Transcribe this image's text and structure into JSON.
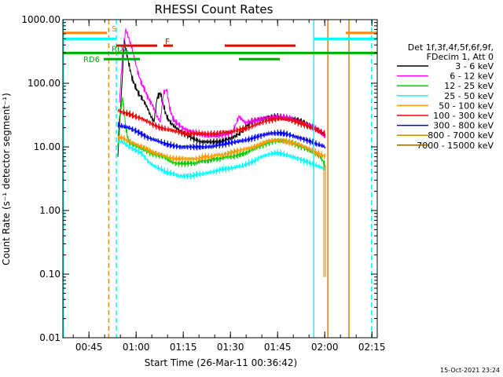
{
  "chart_data": {
    "type": "line",
    "title": "RHESSI Count Rates",
    "xlabel": "Start Time (26-Mar-11 00:36:42)",
    "ylabel": "Count Rate (s⁻¹ detector segment⁻¹)",
    "timestamp": "15-Oct-2021 23:24",
    "y_scale": "log",
    "ylim": [
      0.01,
      1000
    ],
    "xlim_minutes": [
      0,
      100
    ],
    "x_ticks": [
      {
        "minute": 8.3,
        "label": "00:45"
      },
      {
        "minute": 23.3,
        "label": "01:00"
      },
      {
        "minute": 38.3,
        "label": "01:15"
      },
      {
        "minute": 53.3,
        "label": "01:30"
      },
      {
        "minute": 68.3,
        "label": "01:45"
      },
      {
        "minute": 83.3,
        "label": "02:00"
      },
      {
        "minute": 98.3,
        "label": "02:15"
      }
    ],
    "y_ticks": [
      {
        "value": 1000,
        "label": "1000.00"
      },
      {
        "value": 100,
        "label": "100.00"
      },
      {
        "value": 10,
        "label": "10.00"
      },
      {
        "value": 1,
        "label": "1.00"
      },
      {
        "value": 0.1,
        "label": "0.10"
      },
      {
        "value": 0.01,
        "label": "0.01"
      }
    ],
    "legend_header": [
      "Det 1f,3f,4f,5f,6f,9f,",
      "FDecim 1, Att 0"
    ],
    "series": [
      {
        "name": "3 - 6 keV",
        "color": "#000000",
        "x": [
          17.5,
          18,
          19,
          19.5,
          20,
          21,
          22,
          23,
          23.5,
          24,
          25,
          26,
          27,
          28,
          29,
          30,
          31,
          32,
          33,
          34,
          35,
          36,
          37,
          38,
          39,
          40,
          41,
          42,
          44,
          46,
          48,
          50,
          52,
          54,
          56,
          58,
          60,
          62,
          64,
          66,
          68,
          70,
          72,
          74,
          76,
          78,
          80,
          82,
          83.5
        ],
        "y": [
          7,
          20,
          150,
          500,
          350,
          200,
          120,
          90,
          80,
          70,
          60,
          50,
          40,
          30,
          25,
          60,
          70,
          45,
          30,
          25,
          22,
          20,
          18,
          17,
          16,
          15,
          14,
          13,
          12,
          12,
          12,
          12,
          13,
          14,
          16,
          20,
          25,
          27,
          28,
          29,
          30,
          29,
          28,
          27,
          25,
          22,
          20,
          17,
          15
        ]
      },
      {
        "name": "6 - 12 keV",
        "color": "#ff00ff",
        "x": [
          18,
          19,
          20,
          21,
          22,
          23,
          24,
          25,
          26,
          27,
          28,
          29,
          30,
          31,
          32,
          33,
          34,
          35,
          36,
          37,
          38,
          40,
          42,
          44,
          46,
          48,
          50,
          52,
          54,
          56,
          58,
          60,
          62,
          64,
          66,
          68,
          70,
          72,
          74,
          76,
          78,
          80,
          82,
          83.5
        ],
        "y": [
          50,
          300,
          700,
          500,
          350,
          220,
          140,
          100,
          80,
          60,
          50,
          40,
          30,
          25,
          70,
          80,
          40,
          28,
          24,
          22,
          20,
          18,
          17,
          16,
          15,
          15,
          15,
          16,
          17,
          30,
          24,
          25,
          26,
          28,
          29,
          30,
          29,
          28,
          26,
          24,
          22,
          20,
          17,
          14
        ]
      },
      {
        "name": "12 - 25 keV",
        "color": "#00cc00",
        "x": [
          17.5,
          18,
          19,
          20,
          21,
          22,
          24,
          26,
          28,
          30,
          32,
          34,
          36,
          38,
          40,
          42,
          44,
          46,
          48,
          50,
          52,
          54,
          56,
          58,
          60,
          62,
          64,
          66,
          68,
          70,
          72,
          74,
          76,
          78,
          80,
          82,
          83.5
        ],
        "y": [
          11,
          30,
          60,
          20,
          12,
          11,
          10,
          9,
          8,
          7.5,
          7,
          6,
          5.5,
          5.5,
          5.5,
          5.5,
          6,
          6,
          6.5,
          6.5,
          7,
          7,
          7.5,
          8,
          9,
          10,
          11,
          12,
          12.5,
          12.5,
          12,
          11,
          10,
          9,
          8,
          7,
          5
        ]
      },
      {
        "name": "25 - 50 keV",
        "color": "#00ffff",
        "x": [
          17.5,
          19,
          21,
          23,
          25,
          27,
          29,
          31,
          33,
          35,
          37,
          39,
          41,
          43,
          45,
          47,
          49,
          51,
          53,
          55,
          57,
          59,
          61,
          63,
          65,
          67,
          69,
          71,
          73,
          75,
          77,
          79,
          81,
          83.5
        ],
        "y": [
          12,
          12,
          10,
          9,
          8,
          6,
          5,
          4.5,
          4,
          3.8,
          3.5,
          3.5,
          3.5,
          3.7,
          3.8,
          4,
          4.2,
          4.5,
          4.5,
          4.8,
          5,
          5.5,
          6,
          7,
          7.5,
          8,
          8,
          7.5,
          7,
          6.5,
          6,
          5.5,
          5,
          4.5
        ]
      },
      {
        "name": "50 - 100 keV",
        "color": "#ff9900",
        "x": [
          17.5,
          19,
          21,
          23,
          25,
          27,
          29,
          31,
          33,
          35,
          37,
          39,
          41,
          43,
          45,
          47,
          49,
          51,
          53,
          55,
          57,
          59,
          61,
          63,
          65,
          67,
          69,
          71,
          73,
          75,
          77,
          79,
          81,
          83.5
        ],
        "y": [
          14,
          14,
          12,
          11,
          10,
          9,
          8,
          7.5,
          7,
          6.5,
          6.5,
          6.5,
          6.5,
          6.5,
          7,
          7,
          7.5,
          7.5,
          8,
          8.5,
          9,
          9.5,
          10,
          11,
          12,
          12.5,
          12.5,
          12,
          11.5,
          11,
          10,
          9,
          8,
          7
        ]
      },
      {
        "name": "100 - 300 keV",
        "color": "#ee0000",
        "x": [
          17.5,
          19,
          21,
          23,
          25,
          27,
          29,
          31,
          33,
          35,
          37,
          39,
          41,
          43,
          45,
          47,
          49,
          51,
          53,
          55,
          57,
          59,
          61,
          63,
          65,
          67,
          69,
          71,
          73,
          75,
          77,
          79,
          81,
          83.5
        ],
        "y": [
          38,
          35,
          33,
          30,
          28,
          25,
          22,
          20,
          19,
          18,
          17,
          16,
          16,
          16,
          16,
          16,
          16,
          17,
          17,
          18,
          19,
          20,
          22,
          24,
          26,
          27,
          28,
          27,
          26,
          24,
          22,
          20,
          18,
          16
        ]
      },
      {
        "name": "300 - 800 keV",
        "color": "#0000ff",
        "x": [
          17.5,
          19,
          21,
          23,
          25,
          27,
          29,
          31,
          33,
          35,
          37,
          39,
          41,
          43,
          45,
          47,
          49,
          51,
          53,
          55,
          57,
          59,
          61,
          63,
          65,
          67,
          69,
          71,
          73,
          75,
          77,
          79,
          81,
          83.5
        ],
        "y": [
          22,
          21,
          20,
          18,
          16,
          14,
          13,
          12,
          11,
          10.5,
          10,
          10,
          10,
          10,
          10,
          10,
          10.5,
          11,
          11.5,
          12,
          12.5,
          13,
          14,
          15,
          16,
          16.5,
          16.5,
          16,
          15,
          14,
          13,
          12,
          11,
          10
        ]
      },
      {
        "name": "800 - 7000 keV",
        "color": "#cc8800",
        "x": [
          83,
          83,
          83.5,
          83.5
        ],
        "y": [
          0.09,
          5,
          5,
          0.09
        ]
      },
      {
        "name": "7000 - 15000 keV",
        "color": "#886600",
        "x": [],
        "y": []
      }
    ],
    "vertical_lines": [
      {
        "minute": 0.2,
        "color": "#00ffff",
        "style": "solid"
      },
      {
        "minute": 14.6,
        "color": "#ff8800",
        "style": "dashed"
      },
      {
        "minute": 17.0,
        "color": "#00ffff",
        "style": "dashed"
      },
      {
        "minute": 79.8,
        "color": "#00ffff",
        "style": "solid"
      },
      {
        "minute": 84.3,
        "color": "#cc8800",
        "style": "solid"
      },
      {
        "minute": 91.0,
        "color": "#cc8800",
        "style": "solid"
      },
      {
        "minute": 98.2,
        "color": "#00ffff",
        "style": "dashed"
      }
    ],
    "flag_bars": [
      {
        "label": "S",
        "color": "#ff8800",
        "y_level": 620,
        "segments": [
          [
            0,
            14
          ],
          [
            90,
            100
          ]
        ]
      },
      {
        "label": "",
        "color": "#00ffff",
        "y_level": 500,
        "segments": [
          [
            0,
            17
          ],
          [
            80,
            100
          ]
        ]
      },
      {
        "label": "F",
        "color": "#ee0000",
        "y_level": 390,
        "segments": [
          [
            17,
            30
          ],
          [
            32,
            35
          ],
          [
            51.5,
            74
          ]
        ]
      },
      {
        "label": "RDC",
        "color": "#00aa00",
        "y_level": 300,
        "segments": [
          [
            0,
            100
          ]
        ]
      },
      {
        "label": "RD6",
        "color": "#00aa00",
        "y_level": 240,
        "segments": [
          [
            13,
            24.5
          ],
          [
            56,
            69
          ]
        ]
      }
    ]
  }
}
